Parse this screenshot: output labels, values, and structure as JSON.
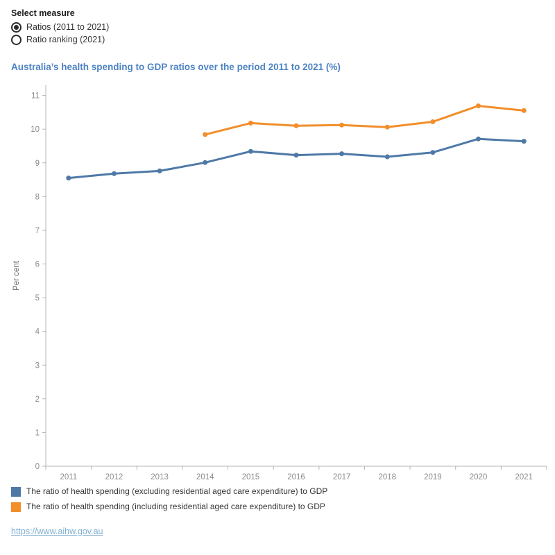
{
  "selector": {
    "label": "Select measure",
    "options": [
      {
        "label": "Ratios (2011 to 2021)",
        "selected": true
      },
      {
        "label": "Ratio ranking (2021)",
        "selected": false
      }
    ]
  },
  "title": {
    "text": "Australia’s health spending to GDP ratios over the period 2011 to 2021 (%)",
    "color": "#4c82c3"
  },
  "footer": {
    "link": "https://www.aihw.gov.au",
    "link_color": "#7fafd1"
  },
  "styles": {
    "axis_line_color": "#b4b4b4",
    "tick_label_color": "#8a8a8a",
    "axis_title_color": "#666666"
  },
  "chart_data": {
    "type": "line",
    "title": "Australia’s health spending to GDP ratios over the period 2011 to 2021 (%)",
    "x": [
      "2011",
      "2012",
      "2013",
      "2014",
      "2015",
      "2016",
      "2017",
      "2018",
      "2019",
      "2020",
      "2021"
    ],
    "xlabel": "",
    "ylabel": "Per cent",
    "ylim": [
      0,
      11.3
    ],
    "yticks": [
      0,
      1,
      2,
      3,
      4,
      5,
      6,
      7,
      8,
      9,
      10,
      11
    ],
    "grid": false,
    "legend_position": "bottom",
    "series": [
      {
        "name": "The ratio of health spending (excluding residential aged care expenditure) to GDP",
        "color": "#4e79a7",
        "values": [
          8.55,
          8.68,
          8.76,
          9.01,
          9.34,
          9.23,
          9.27,
          9.18,
          9.31,
          9.71,
          9.64
        ]
      },
      {
        "name": "The ratio of health spending (including residential aged care expenditure) to GDP",
        "color": "#f28e2b",
        "values": [
          null,
          null,
          null,
          9.84,
          10.18,
          10.1,
          10.12,
          10.06,
          10.22,
          10.69,
          10.55
        ]
      }
    ]
  }
}
